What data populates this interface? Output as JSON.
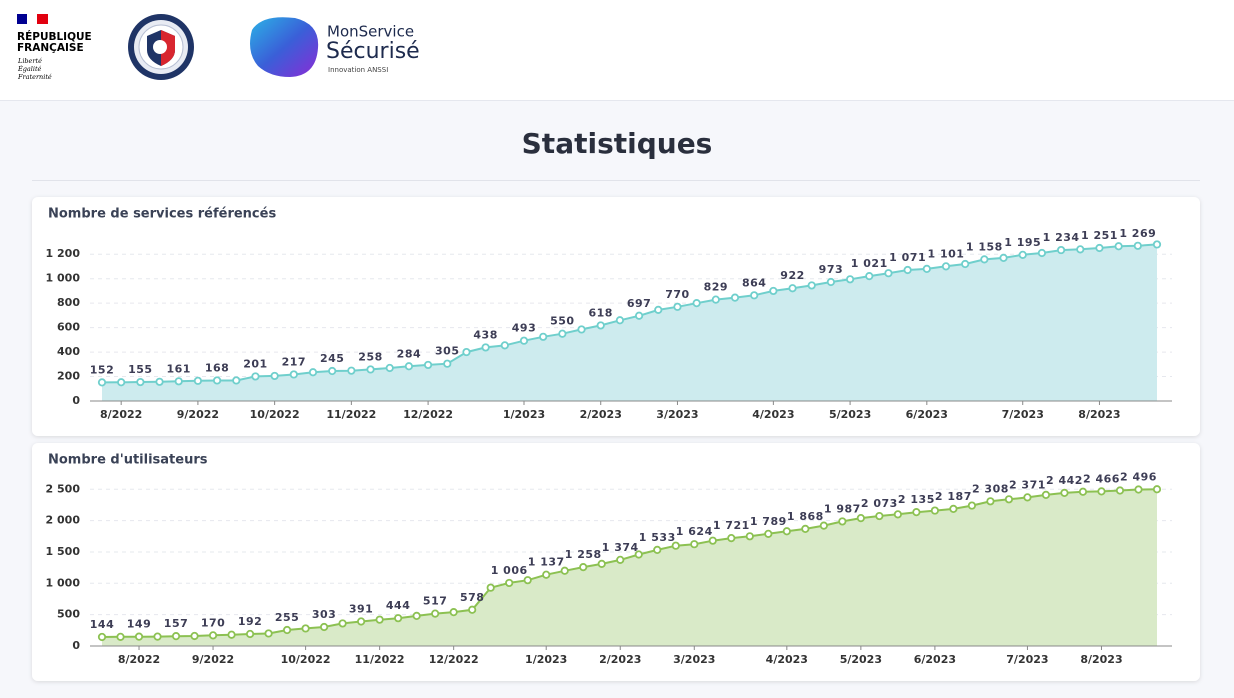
{
  "header": {
    "republic": [
      "RÉPUBLIQUE",
      "FRANÇAISE"
    ],
    "motto": [
      "Liberté",
      "Égalité",
      "Fraternité"
    ],
    "product": [
      "MonService",
      "Sécurisé"
    ],
    "tagline": "Innovation ANSSI"
  },
  "page_title": "Statistiques",
  "chart_data": [
    {
      "type": "area",
      "title": "Nombre de services référencés",
      "color": "#6fcfcc",
      "fill_color": "#cdebee",
      "grid": true,
      "categories": [
        null,
        "8/2022",
        null,
        null,
        null,
        "9/2022",
        null,
        null,
        null,
        "10/2022",
        null,
        null,
        null,
        "11/2022",
        null,
        null,
        null,
        "12/2022",
        null,
        null,
        null,
        null,
        "1/2023",
        null,
        null,
        null,
        "2/2023",
        null,
        null,
        null,
        "3/2023",
        null,
        null,
        null,
        null,
        "4/2023",
        null,
        null,
        null,
        "5/2023",
        null,
        null,
        null,
        "6/2023",
        null,
        null,
        null,
        null,
        "7/2023",
        null,
        null,
        null,
        "8/2023",
        null,
        null,
        null
      ],
      "values": [
        152,
        153,
        155,
        157,
        161,
        165,
        168,
        168,
        201,
        205,
        217,
        235,
        245,
        248,
        258,
        270,
        284,
        295,
        305,
        400,
        438,
        455,
        493,
        525,
        550,
        585,
        618,
        660,
        697,
        745,
        770,
        800,
        829,
        845,
        864,
        900,
        922,
        945,
        973,
        995,
        1021,
        1045,
        1071,
        1080,
        1101,
        1120,
        1158,
        1170,
        1195,
        1210,
        1234,
        1240,
        1251,
        1265,
        1269,
        1280
      ],
      "value_labels": [
        "152",
        null,
        "155",
        null,
        "161",
        null,
        "168",
        null,
        "201",
        null,
        "217",
        null,
        "245",
        null,
        "258",
        null,
        "284",
        null,
        "305",
        null,
        "438",
        null,
        "493",
        null,
        "550",
        null,
        "618",
        null,
        "697",
        null,
        "770",
        null,
        "829",
        null,
        "864",
        null,
        "922",
        null,
        "973",
        null,
        "1 021",
        null,
        "1 071",
        null,
        "1 101",
        null,
        "1 158",
        null,
        "1 195",
        null,
        "1 234",
        null,
        "1 251",
        null,
        "1 269",
        null
      ],
      "ylim": [
        0,
        1300
      ],
      "yticks": [
        0,
        200,
        400,
        600,
        800,
        {
          "value": 1000,
          "label": "1 000"
        },
        {
          "value": 1200,
          "label": "1 200"
        }
      ]
    },
    {
      "type": "area",
      "title": "Nombre d'utilisateurs",
      "color": "#8cc152",
      "fill_color": "#d9eac8",
      "grid": true,
      "categories": [
        null,
        null,
        "8/2022",
        null,
        null,
        null,
        "9/2022",
        null,
        null,
        null,
        null,
        "10/2022",
        null,
        null,
        null,
        "11/2022",
        null,
        null,
        null,
        "12/2022",
        null,
        null,
        null,
        null,
        "1/2023",
        null,
        null,
        null,
        "2/2023",
        null,
        null,
        null,
        "3/2023",
        null,
        null,
        null,
        null,
        "4/2023",
        null,
        null,
        null,
        "5/2023",
        null,
        null,
        null,
        "6/2023",
        null,
        null,
        null,
        null,
        "7/2023",
        null,
        null,
        null,
        "8/2023",
        null,
        null,
        null
      ],
      "values": [
        144,
        146,
        149,
        150,
        157,
        160,
        170,
        180,
        192,
        200,
        255,
        280,
        303,
        360,
        391,
        420,
        444,
        480,
        517,
        540,
        578,
        930,
        1006,
        1050,
        1137,
        1200,
        1258,
        1310,
        1374,
        1460,
        1533,
        1600,
        1624,
        1680,
        1721,
        1750,
        1789,
        1830,
        1868,
        1920,
        1987,
        2040,
        2073,
        2100,
        2135,
        2160,
        2187,
        2240,
        2308,
        2340,
        2371,
        2410,
        2442,
        2460,
        2466,
        2480,
        2496,
        2500
      ],
      "value_labels": [
        "144",
        null,
        "149",
        null,
        "157",
        null,
        "170",
        null,
        "192",
        null,
        "255",
        null,
        "303",
        null,
        "391",
        null,
        "444",
        null,
        "517",
        null,
        "578",
        null,
        "1 006",
        null,
        "1 137",
        null,
        "1 258",
        null,
        "1 374",
        null,
        "1 533",
        null,
        "1 624",
        null,
        "1 721",
        null,
        "1 789",
        null,
        "1 868",
        null,
        "1 987",
        null,
        "2 073",
        null,
        "2 135",
        null,
        "2 187",
        null,
        "2 308",
        null,
        "2 371",
        null,
        "2 442",
        null,
        "2 466",
        null,
        "2 496",
        null
      ],
      "ylim": [
        0,
        2600
      ],
      "yticks": [
        0,
        500,
        {
          "value": 1000,
          "label": "1 000"
        },
        {
          "value": 1500,
          "label": "1 500"
        },
        {
          "value": 2000,
          "label": "2 000"
        },
        {
          "value": 2500,
          "label": "2 500"
        }
      ]
    }
  ]
}
